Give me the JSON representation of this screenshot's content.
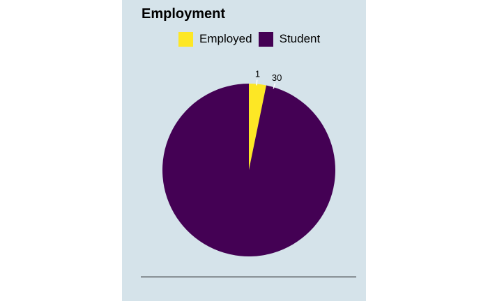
{
  "chart_data": {
    "type": "pie",
    "title": "Employment",
    "legend_position": "top",
    "categories": [
      "Employed",
      "Student"
    ],
    "values": [
      1,
      30
    ],
    "colors": [
      "#fde725",
      "#440154"
    ],
    "data_labels": [
      "1",
      "30"
    ]
  }
}
